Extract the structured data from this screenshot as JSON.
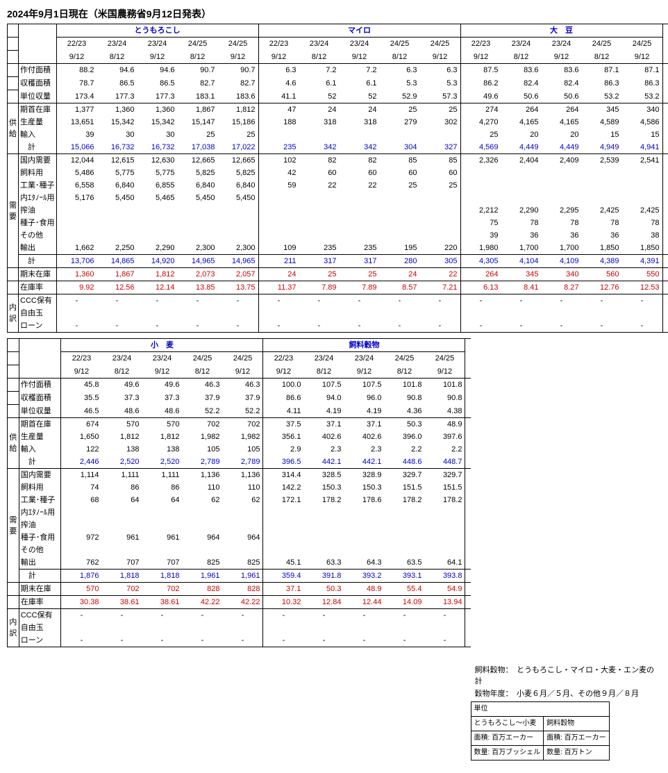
{
  "title": "2024年9月1日現在（米国農務省9月12日発表）",
  "commodities_top": [
    "とうもろこし",
    "マイロ",
    "大　豆"
  ],
  "commodities_bottom": [
    "小　麦",
    "飼料穀物"
  ],
  "years": [
    "22/23",
    "23/24",
    "23/24",
    "24/25",
    "24/25"
  ],
  "dates": [
    "9/12",
    "8/12",
    "9/12",
    "8/12",
    "9/12"
  ],
  "section_labels": {
    "supply": "供給",
    "demand": "需要",
    "breakdown": "内訳"
  },
  "row_labels": {
    "r0": "作付面積",
    "r1": "収穫面積",
    "r2": "単位収量",
    "r3": "期首在庫",
    "r4": "生産量",
    "r5": "輸入",
    "r6": "　計",
    "r7": "国内需要",
    "r8": "飼料用",
    "r9": "工業･種子",
    "r10": "内ｴﾀﾉｰﾙ用",
    "r11": "搾油",
    "r12": "種子･食用",
    "r13": "その他",
    "r14": "輸出",
    "r15": "　計",
    "r16": "期末在庫",
    "r17": "在庫率",
    "r18": "CCC保有",
    "r19": "自由玉",
    "r20": "ローン"
  },
  "data_top": {
    "corn": {
      "r0": [
        "88.2",
        "94.6",
        "94.6",
        "90.7",
        "90.7"
      ],
      "r1": [
        "78.7",
        "86.5",
        "86.5",
        "82.7",
        "82.7"
      ],
      "r2": [
        "173.4",
        "177.3",
        "177.3",
        "183.1",
        "183.6"
      ],
      "r3": [
        "1,377",
        "1,360",
        "1,360",
        "1,867",
        "1,812"
      ],
      "r4": [
        "13,651",
        "15,342",
        "15,342",
        "15,147",
        "15,186"
      ],
      "r5": [
        "39",
        "30",
        "30",
        "25",
        "25"
      ],
      "r6": [
        "15,066",
        "16,732",
        "16,732",
        "17,038",
        "17,022"
      ],
      "r7": [
        "12,044",
        "12,615",
        "12,630",
        "12,665",
        "12,665"
      ],
      "r8": [
        "5,486",
        "5,775",
        "5,775",
        "5,825",
        "5,825"
      ],
      "r9": [
        "6,558",
        "6,840",
        "6,855",
        "6,840",
        "6,840"
      ],
      "r10": [
        "5,176",
        "5,450",
        "5,465",
        "5,450",
        "5,450"
      ],
      "r11": [
        "",
        "",
        "",
        "",
        ""
      ],
      "r12": [
        "",
        "",
        "",
        "",
        ""
      ],
      "r13": [
        "",
        "",
        "",
        "",
        ""
      ],
      "r14": [
        "1,662",
        "2,250",
        "2,290",
        "2,300",
        "2,300"
      ],
      "r15": [
        "13,706",
        "14,865",
        "14,920",
        "14,965",
        "14,965"
      ],
      "r16": [
        "1,360",
        "1,867",
        "1,812",
        "2,073",
        "2,057"
      ],
      "r17": [
        "9.92",
        "12.56",
        "12.14",
        "13.85",
        "13.75"
      ],
      "r18": [
        "-",
        "-",
        "-",
        "-",
        "-"
      ],
      "r19": [
        "",
        "",
        "",
        "",
        ""
      ],
      "r20": [
        "-",
        "-",
        "-",
        "-",
        "-"
      ]
    },
    "milo": {
      "r0": [
        "6.3",
        "7.2",
        "7.2",
        "6.3",
        "6.3"
      ],
      "r1": [
        "4.6",
        "6.1",
        "6.1",
        "5.3",
        "5.3"
      ],
      "r2": [
        "41.1",
        "52",
        "52",
        "52.9",
        "57.3"
      ],
      "r3": [
        "47",
        "24",
        "24",
        "25",
        "25"
      ],
      "r4": [
        "188",
        "318",
        "318",
        "279",
        "302"
      ],
      "r5": [
        "",
        "",
        "",
        "",
        ""
      ],
      "r6": [
        "235",
        "342",
        "342",
        "304",
        "327"
      ],
      "r7": [
        "102",
        "82",
        "82",
        "85",
        "85"
      ],
      "r8": [
        "42",
        "60",
        "60",
        "60",
        "60"
      ],
      "r9": [
        "59",
        "22",
        "22",
        "25",
        "25"
      ],
      "r10": [
        "",
        "",
        "",
        "",
        ""
      ],
      "r11": [
        "",
        "",
        "",
        "",
        ""
      ],
      "r12": [
        "",
        "",
        "",
        "",
        ""
      ],
      "r13": [
        "",
        "",
        "",
        "",
        ""
      ],
      "r14": [
        "109",
        "235",
        "235",
        "195",
        "220"
      ],
      "r15": [
        "211",
        "317",
        "317",
        "280",
        "305"
      ],
      "r16": [
        "24",
        "25",
        "25",
        "24",
        "22"
      ],
      "r17": [
        "11.37",
        "7.89",
        "7.89",
        "8.57",
        "7.21"
      ],
      "r18": [
        "-",
        "-",
        "-",
        "-",
        "-"
      ],
      "r19": [
        "",
        "",
        "",
        "",
        ""
      ],
      "r20": [
        "-",
        "-",
        "-",
        "-",
        "-"
      ]
    },
    "soy": {
      "r0": [
        "87.5",
        "83.6",
        "83.6",
        "87.1",
        "87.1"
      ],
      "r1": [
        "86.2",
        "82.4",
        "82.4",
        "86.3",
        "86.3"
      ],
      "r2": [
        "49.6",
        "50.6",
        "50.6",
        "53.2",
        "53.2"
      ],
      "r3": [
        "274",
        "264",
        "264",
        "345",
        "340"
      ],
      "r4": [
        "4,270",
        "4,165",
        "4,165",
        "4,589",
        "4,586"
      ],
      "r5": [
        "25",
        "20",
        "20",
        "15",
        "15"
      ],
      "r6": [
        "4,569",
        "4,449",
        "4,449",
        "4,949",
        "4,941"
      ],
      "r7": [
        "2,326",
        "2,404",
        "2,409",
        "2,539",
        "2,541"
      ],
      "r8": [
        "",
        "",
        "",
        "",
        ""
      ],
      "r9": [
        "",
        "",
        "",
        "",
        ""
      ],
      "r10": [
        "",
        "",
        "",
        "",
        ""
      ],
      "r11": [
        "2,212",
        "2,290",
        "2,295",
        "2,425",
        "2,425"
      ],
      "r12": [
        "75",
        "78",
        "78",
        "78",
        "78"
      ],
      "r13": [
        "39",
        "36",
        "36",
        "36",
        "38"
      ],
      "r14": [
        "1,980",
        "1,700",
        "1,700",
        "1,850",
        "1,850"
      ],
      "r15": [
        "4,305",
        "4,104",
        "4,109",
        "4,389",
        "4,391"
      ],
      "r16": [
        "264",
        "345",
        "340",
        "560",
        "550"
      ],
      "r17": [
        "6.13",
        "8.41",
        "8.27",
        "12.76",
        "12.53"
      ],
      "r18": [
        "-",
        "-",
        "-",
        "-",
        "-"
      ],
      "r19": [
        "",
        "",
        "",
        "",
        ""
      ],
      "r20": [
        "-",
        "-",
        "-",
        "-",
        "-"
      ]
    }
  },
  "data_bottom": {
    "wheat": {
      "r0": [
        "45.8",
        "49.6",
        "49.6",
        "46.3",
        "46.3"
      ],
      "r1": [
        "35.5",
        "37.3",
        "37.3",
        "37.9",
        "37.9"
      ],
      "r2": [
        "46.5",
        "48.6",
        "48.6",
        "52.2",
        "52.2"
      ],
      "r3": [
        "674",
        "570",
        "570",
        "702",
        "702"
      ],
      "r4": [
        "1,650",
        "1,812",
        "1,812",
        "1,982",
        "1,982"
      ],
      "r5": [
        "122",
        "138",
        "138",
        "105",
        "105"
      ],
      "r6": [
        "2,446",
        "2,520",
        "2,520",
        "2,789",
        "2,789"
      ],
      "r7": [
        "1,114",
        "1,111",
        "1,111",
        "1,136",
        "1,136"
      ],
      "r8": [
        "74",
        "86",
        "86",
        "110",
        "110"
      ],
      "r9": [
        "68",
        "64",
        "64",
        "62",
        "62"
      ],
      "r10": [
        "",
        "",
        "",
        "",
        ""
      ],
      "r11": [
        "",
        "",
        "",
        "",
        ""
      ],
      "r12": [
        "972",
        "961",
        "961",
        "964",
        "964"
      ],
      "r13": [
        "",
        "",
        "",
        "",
        ""
      ],
      "r14": [
        "762",
        "707",
        "707",
        "825",
        "825"
      ],
      "r15": [
        "1,876",
        "1,818",
        "1,818",
        "1,961",
        "1,961"
      ],
      "r16": [
        "570",
        "702",
        "702",
        "828",
        "828"
      ],
      "r17": [
        "30.38",
        "38.61",
        "38.61",
        "42.22",
        "42.22"
      ],
      "r18": [
        "-",
        "-",
        "-",
        "-",
        "-"
      ],
      "r19": [
        "",
        "",
        "",
        "",
        ""
      ],
      "r20": [
        "-",
        "-",
        "-",
        "-",
        "-"
      ]
    },
    "feed": {
      "r0": [
        "100.0",
        "107.5",
        "107.5",
        "101.8",
        "101.8"
      ],
      "r1": [
        "86.6",
        "94.0",
        "96.0",
        "90.8",
        "90.8"
      ],
      "r2": [
        "4.11",
        "4.19",
        "4.19",
        "4.36",
        "4.38"
      ],
      "r3": [
        "37.5",
        "37.1",
        "37.1",
        "50.3",
        "48.9"
      ],
      "r4": [
        "356.1",
        "402.6",
        "402.6",
        "396.0",
        "397.6"
      ],
      "r5": [
        "2.9",
        "2.3",
        "2.3",
        "2.2",
        "2.2"
      ],
      "r6": [
        "396.5",
        "442.1",
        "442.1",
        "448.6",
        "448.7"
      ],
      "r7": [
        "314.4",
        "328.5",
        "328.9",
        "329.7",
        "329.7"
      ],
      "r8": [
        "142.2",
        "150.3",
        "150.3",
        "151.5",
        "151.5"
      ],
      "r9": [
        "172.1",
        "178.2",
        "178.6",
        "178.2",
        "178.2"
      ],
      "r10": [
        "",
        "",
        "",
        "",
        ""
      ],
      "r11": [
        "",
        "",
        "",
        "",
        ""
      ],
      "r12": [
        "",
        "",
        "",
        "",
        ""
      ],
      "r13": [
        "",
        "",
        "",
        "",
        ""
      ],
      "r14": [
        "45.1",
        "63.3",
        "64.3",
        "63.5",
        "64.1"
      ],
      "r15": [
        "359.4",
        "391.8",
        "393.2",
        "393.1",
        "393.8"
      ],
      "r16": [
        "37.1",
        "50.3",
        "48.9",
        "55.4",
        "54.9"
      ],
      "r17": [
        "10.32",
        "12.84",
        "12.44",
        "14.09",
        "13.94"
      ],
      "r18": [
        "-",
        "-",
        "-",
        "-",
        "-"
      ],
      "r19": [
        "",
        "",
        "",
        "",
        ""
      ],
      "r20": [
        "-",
        "-",
        "-",
        "-",
        "-"
      ]
    }
  },
  "footnotes": {
    "f1": "飼料穀物：　とうもろこし・マイロ・大麦・エン麦の計",
    "f2": "穀物年度：　小麦６月／５月、その他９月／８月"
  },
  "units_box": {
    "head": "単位",
    "c1": "とうもろこし～小麦",
    "c2": "飼料穀物",
    "a1": "面積: 百万エーカー",
    "a2": "面積: 百万エーカー",
    "q1": "数量: 百万ブッシェル",
    "q2": "数量: 百万トン"
  },
  "row_style": {
    "r0": {
      "bt": true
    },
    "r3": {
      "bt": true
    },
    "r6": {
      "bb": true,
      "color": "blue"
    },
    "r15": {
      "bt": true,
      "bb": true,
      "color": "blue"
    },
    "r16": {
      "bb": true,
      "color": "red"
    },
    "r17": {
      "bb": true,
      "color": "red"
    },
    "r18": {},
    "r20": {
      "bb": true
    }
  },
  "section_rows": {
    "supply": [
      3,
      6
    ],
    "demand": [
      7,
      15
    ],
    "breakdown": [
      18,
      20
    ]
  }
}
